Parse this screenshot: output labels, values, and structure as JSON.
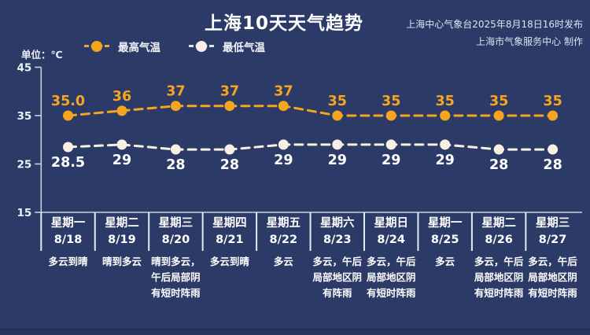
{
  "title": "上海10天天气趋势",
  "header": {
    "publish_info": "上海中心气象台2025年8月18日16时发布",
    "producer_info": "上海市气象服务中心 制作"
  },
  "unit_label": "单位：℃",
  "colors": {
    "background": "#2b3a67",
    "high_series": "#f6a51f",
    "low_series": "#f7f0e3",
    "low_label_text": "#ffffff",
    "axis_line": "#c9d0e0",
    "separator_line": "#e6eaf4",
    "text": "#ffffff"
  },
  "chart_data": {
    "type": "line",
    "title": "上海10天天气趋势",
    "unit": "℃",
    "ylim": [
      15,
      45
    ],
    "yticks": [
      45,
      35,
      25,
      15
    ],
    "grid": false,
    "legend_position": "top-left",
    "categories": [
      "8/18",
      "8/19",
      "8/20",
      "8/21",
      "8/22",
      "8/23",
      "8/24",
      "8/25",
      "8/26",
      "8/27"
    ],
    "series": [
      {
        "name": "最高气温",
        "color": "#f6a51f",
        "values": [
          35.0,
          36,
          37,
          37,
          37,
          35,
          35,
          35,
          35,
          35
        ],
        "labels": [
          "35.0",
          "36",
          "37",
          "37",
          "37",
          "35",
          "35",
          "35",
          "35",
          "35"
        ]
      },
      {
        "name": "最低气温",
        "color": "#f7f0e3",
        "values": [
          28.5,
          29,
          28,
          28,
          29,
          29,
          29,
          29,
          28,
          28
        ],
        "labels": [
          "28.5",
          "29",
          "28",
          "28",
          "29",
          "29",
          "29",
          "29",
          "28",
          "28"
        ]
      }
    ]
  },
  "days": [
    {
      "weekday": "星期一",
      "date": "8/18",
      "weather_lines": [
        "多云到晴"
      ]
    },
    {
      "weekday": "星期二",
      "date": "8/19",
      "weather_lines": [
        "晴到多云"
      ]
    },
    {
      "weekday": "星期三",
      "date": "8/20",
      "weather_lines": [
        "晴到多云，",
        "午后局部阴",
        "有短时阵雨"
      ]
    },
    {
      "weekday": "星期四",
      "date": "8/21",
      "weather_lines": [
        "多云到晴"
      ]
    },
    {
      "weekday": "星期五",
      "date": "8/22",
      "weather_lines": [
        "多云"
      ]
    },
    {
      "weekday": "星期六",
      "date": "8/23",
      "weather_lines": [
        "多云，午后",
        "局部地区阴",
        "有阵雨"
      ]
    },
    {
      "weekday": "星期日",
      "date": "8/24",
      "weather_lines": [
        "多云，午后",
        "局部地区阴",
        "有短时阵雨"
      ]
    },
    {
      "weekday": "星期一",
      "date": "8/25",
      "weather_lines": [
        "多云"
      ]
    },
    {
      "weekday": "星期二",
      "date": "8/26",
      "weather_lines": [
        "多云，午后",
        "局部地区阴",
        "有短时阵雨"
      ]
    },
    {
      "weekday": "星期三",
      "date": "8/27",
      "weather_lines": [
        "多云，午后",
        "局部地区阴",
        "有短时阵雨"
      ]
    }
  ]
}
